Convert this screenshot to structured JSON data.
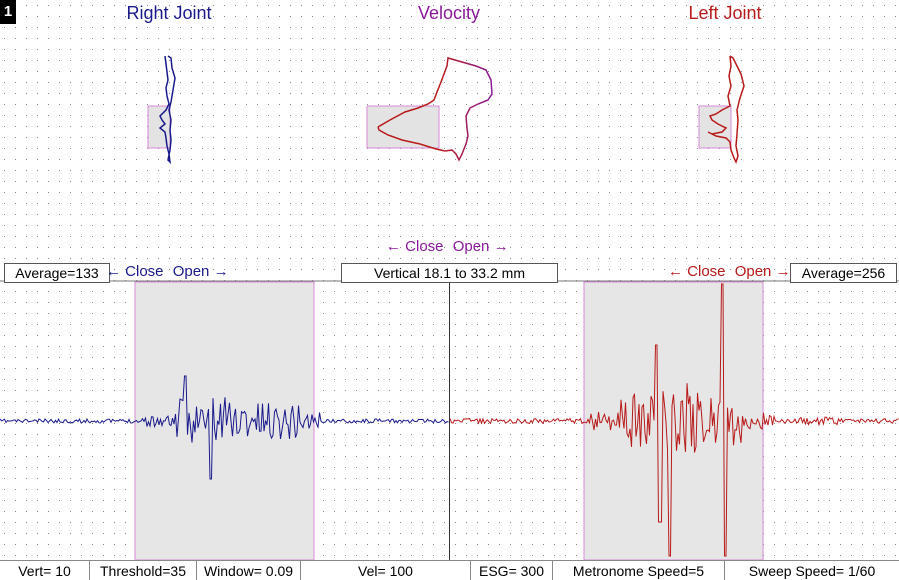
{
  "panel_number": "1",
  "titles": {
    "right_joint": "Right Joint",
    "velocity": "Velocity",
    "left_joint": "Left Joint"
  },
  "velocity_direction": {
    "arrow_left": "←",
    "close": "Close",
    "open": "Open",
    "arrow_right": "→"
  },
  "right_info": {
    "average": "Average=133",
    "arrow_left": "←",
    "close": "Close",
    "open": "Open",
    "arrow_right": "→"
  },
  "vertical_range": "Vertical 18.1 to 33.2 mm",
  "left_info": {
    "arrow_left": "←",
    "close": "Close",
    "open": "Open",
    "arrow_right": "→",
    "average": "Average=256"
  },
  "status": {
    "vert": "Vert= 10",
    "threshold": "Threshold=35",
    "window": "Window= 0.09",
    "vel": "Vel= 100",
    "esg": "ESG= 300",
    "metronome": "Metronome Speed=5",
    "sweep": "Sweep Speed= 1/60"
  },
  "colors": {
    "right": "#1a1a8c",
    "velocity": "#8a1a9a",
    "left": "#b81a1a",
    "highlight_fill": "#e3e3e3",
    "highlight_border": "#d68ad6",
    "grid_dot": "#8a8a8a"
  }
}
